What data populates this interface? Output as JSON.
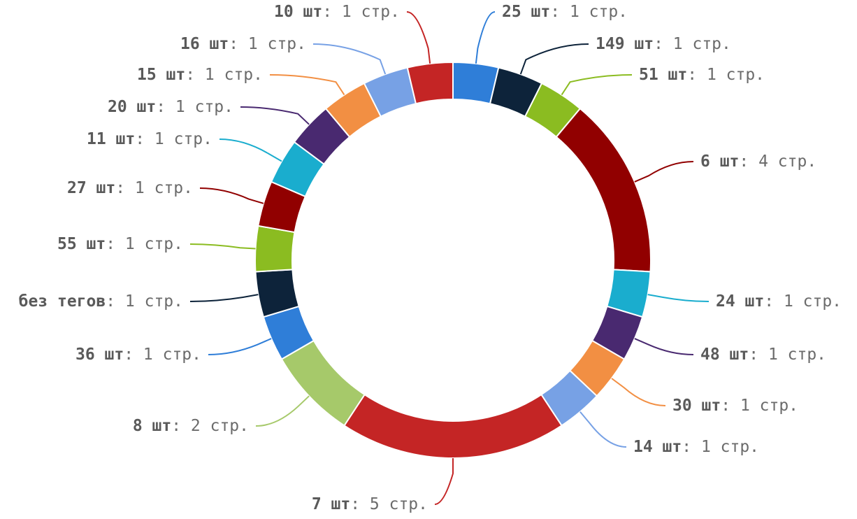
{
  "chart_data": {
    "type": "pie",
    "style": "donut",
    "unit_label": "стр.",
    "legend": "none",
    "slices": [
      {
        "label": "25 шт",
        "value": 1,
        "color": "#2f7ed8"
      },
      {
        "label": "149 шт",
        "value": 1,
        "color": "#0d233a"
      },
      {
        "label": "51 шт",
        "value": 1,
        "color": "#8bbc21"
      },
      {
        "label": "6 шт",
        "value": 4,
        "color": "#910000"
      },
      {
        "label": "24 шт",
        "value": 1,
        "color": "#1aadce"
      },
      {
        "label": "48 шт",
        "value": 1,
        "color": "#492970"
      },
      {
        "label": "30 шт",
        "value": 1,
        "color": "#f28f43"
      },
      {
        "label": "14 шт",
        "value": 1,
        "color": "#77a1e5"
      },
      {
        "label": "7 шт",
        "value": 5,
        "color": "#c42525"
      },
      {
        "label": "8 шт",
        "value": 2,
        "color": "#a6c96a"
      },
      {
        "label": "36 шт",
        "value": 1,
        "color": "#2f7ed8"
      },
      {
        "label": "без тегов",
        "value": 1,
        "color": "#0d233a"
      },
      {
        "label": "55 шт",
        "value": 1,
        "color": "#8bbc21"
      },
      {
        "label": "27 шт",
        "value": 1,
        "color": "#910000"
      },
      {
        "label": "11 шт",
        "value": 1,
        "color": "#1aadce"
      },
      {
        "label": "20 шт",
        "value": 1,
        "color": "#492970"
      },
      {
        "label": "15 шт",
        "value": 1,
        "color": "#f28f43"
      },
      {
        "label": "16 шт",
        "value": 1,
        "color": "#77a1e5"
      },
      {
        "label": "10 шт",
        "value": 1,
        "color": "#c42525"
      }
    ]
  }
}
